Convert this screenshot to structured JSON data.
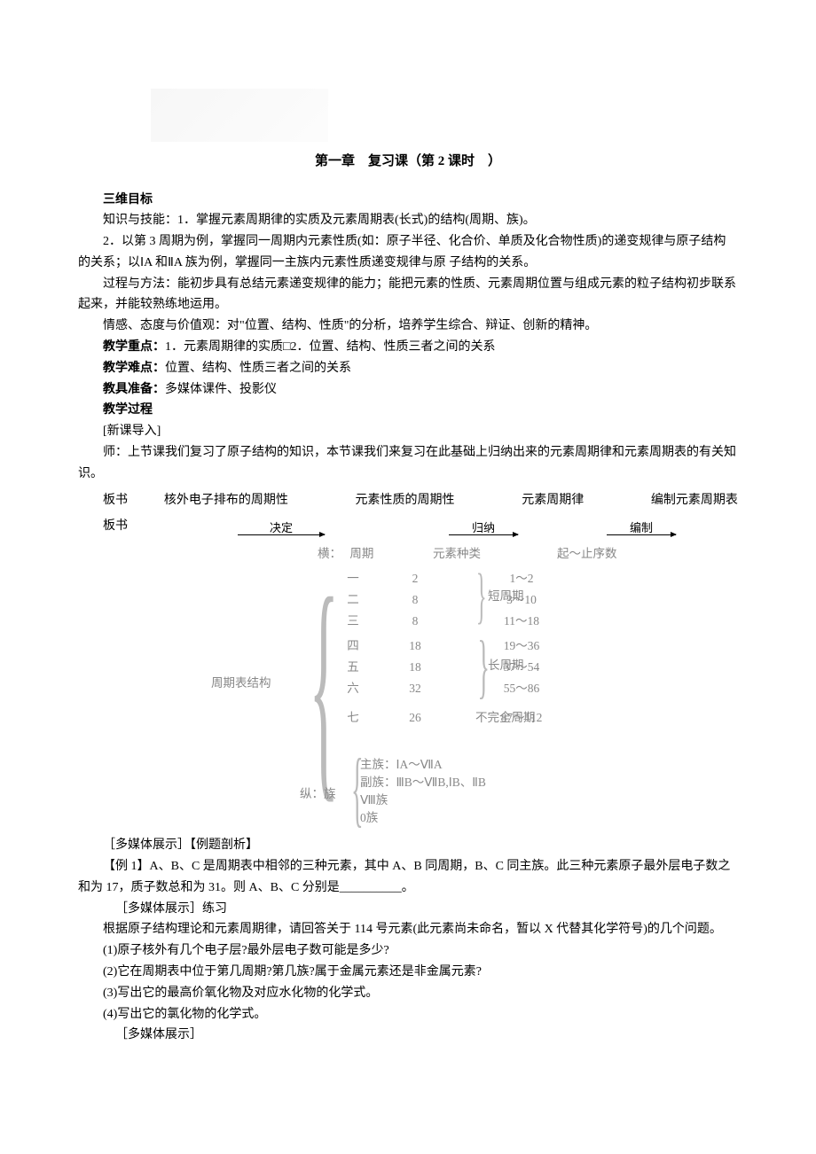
{
  "title": "第一章　复习课（第 2 课时　）",
  "h_goal": "三维目标",
  "goal_knowledge_1": "知识与技能：1．掌握元素周期律的实质及元素周期表(长式)的结构(周期、族)。",
  "goal_knowledge_2": "2．以第 3 周期为例，掌握同一周期内元素性质(如：原子半径、化合价、单质及化合物性质)的递变规律与原子结构的关系；以ⅠA 和ⅡA 族为例，掌握同一主族内元素性质递变规律与原 子结构的关系。",
  "goal_method": "过程与方法：能初步具有总结元素递变规律的能力；能把元素的性质、元素周期位置与组成元素的粒子结构初步联系起来，并能较熟练地运用。",
  "goal_emotion": "情感、态度与价值观：对\"位置、结构、性质\"的分析，培养学生综合、辩证、创新的精神。",
  "h_focus": "教学重点：",
  "focus_text": "1．元素周期律的实质□2．位置、结构、性质三者之间的关系",
  "h_difficulty": "教学难点：",
  "difficulty_text": "位置、结构、性质三者之间的关系",
  "h_prep": "教具准备：",
  "prep_text": "多媒体课件、投影仪",
  "h_process": "教学过程",
  "lead_in": "[新课导入]",
  "teacher_line": "师：上节课我们复习了原子结构的知识，本节课我们来复习在此基础上归纳出来的元素周期律和元素周期表的有关知识。",
  "board1_label": "板书　",
  "board1_a": "核外电子排布的周期性",
  "board1_b": "元素性质的周期性",
  "board1_c": "元素周期律",
  "board1_d": "编制元素周期表",
  "board2_label": "板书",
  "arrow1": "决定",
  "arrow2": "归纳",
  "arrow3": "编制",
  "diagram": {
    "root": "周期表结构",
    "horiz_label": "横：",
    "period_label": "周期",
    "kinds_label": "元素种类",
    "range_label": "起～止序数",
    "periods": [
      {
        "name": "一",
        "count": "2",
        "range": "1～2"
      },
      {
        "name": "二",
        "count": "8",
        "range": "3～10"
      },
      {
        "name": "三",
        "count": "8",
        "range": "11～18"
      },
      {
        "name": "四",
        "count": "18",
        "range": "19～36"
      },
      {
        "name": "五",
        "count": "18",
        "range": "37～54"
      },
      {
        "name": "六",
        "count": "32",
        "range": "55～86"
      },
      {
        "name": "七",
        "count": "26",
        "range": "87～112"
      }
    ],
    "short_label": "短周期",
    "long_label": "长周期",
    "incomplete_label": "不完全周期",
    "vert_label": "纵：族",
    "group_lines": [
      "主族：ⅠA～ⅦA",
      "副族：ⅢB～ⅦB,ⅠB、ⅡB",
      "Ⅷ族",
      "0族"
    ]
  },
  "mm1": "［多媒体展示］【例题剖析】",
  "ex1": "【例 1】A、B、C 是周期表中相邻的三种元素，其中 A、B 同周期，B、C 同主族。此三种元素原子最外层电子数之和为 17，质子数总和为 31。则 A、B、C 分别是__________。",
  "mm2": "［多媒体展示］练习",
  "practice_intro": "根据原子结构理论和元素周期律，请回答关于 114 号元素(此元素尚未命名，暂以 X 代替其化学符号)的几个问题。",
  "q1": "(1)原子核外有几个电子层?最外层电子数可能是多少?",
  "q2": "(2)它在周期表中位于第几周期?第几族?属于金属元素还是非金属元素?",
  "q3": "(3)写出它的最高价氧化物及对应水化物的化学式。",
  "q4": "(4)写出它的氯化物的化学式。",
  "mm3": "［多媒体展示］"
}
